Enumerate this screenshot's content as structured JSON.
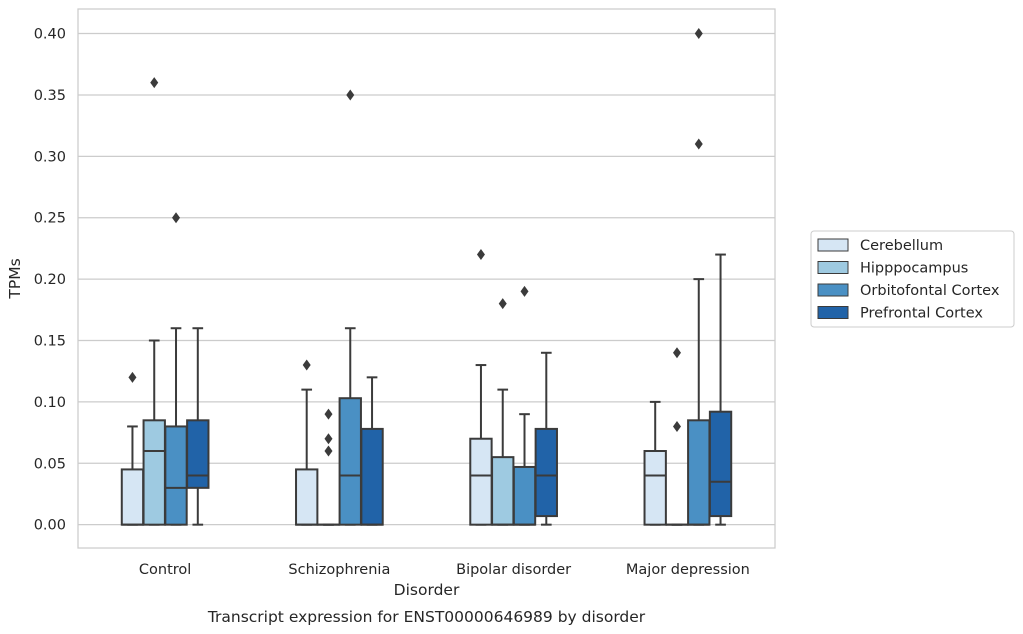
{
  "caption": "Transcript expression for ENST00000646989 by disorder",
  "chart_data": {
    "type": "boxplot",
    "xlabel": "Disorder",
    "ylabel": "TPMs",
    "ylim": [
      -0.019,
      0.42
    ],
    "yticks": [
      0.0,
      0.05,
      0.1,
      0.15,
      0.2,
      0.25,
      0.3,
      0.35,
      0.4
    ],
    "ytick_labels": [
      "0.00",
      "0.05",
      "0.10",
      "0.15",
      "0.20",
      "0.25",
      "0.30",
      "0.35",
      "0.40"
    ],
    "grid": true,
    "legend_position": "right",
    "categories": [
      "Control",
      "Schizophrenia",
      "Bipolar disorder",
      "Major depression"
    ],
    "series": [
      {
        "name": "Cerebellum",
        "color": "#d6e6f4",
        "boxes": [
          {
            "whislo": 0.0,
            "q1": 0.0,
            "med": 0.0,
            "q3": 0.045,
            "whishi": 0.08,
            "fliers": [
              0.12
            ]
          },
          {
            "whislo": 0.0,
            "q1": 0.0,
            "med": 0.0,
            "q3": 0.045,
            "whishi": 0.11,
            "fliers": [
              0.13
            ]
          },
          {
            "whislo": 0.0,
            "q1": 0.0,
            "med": 0.04,
            "q3": 0.07,
            "whishi": 0.13,
            "fliers": [
              0.22
            ]
          },
          {
            "whislo": 0.0,
            "q1": 0.0,
            "med": 0.04,
            "q3": 0.06,
            "whishi": 0.1,
            "fliers": []
          }
        ]
      },
      {
        "name": "Hipppocampus",
        "color": "#9ecae1",
        "boxes": [
          {
            "whislo": 0.0,
            "q1": 0.0,
            "med": 0.06,
            "q3": 0.085,
            "whishi": 0.15,
            "fliers": [
              0.36
            ]
          },
          {
            "whislo": 0.0,
            "q1": 0.0,
            "med": 0.0,
            "q3": 0.0,
            "whishi": 0.0,
            "fliers": [
              0.06,
              0.07,
              0.09
            ]
          },
          {
            "whislo": 0.0,
            "q1": 0.0,
            "med": 0.0,
            "q3": 0.055,
            "whishi": 0.11,
            "fliers": [
              0.18
            ]
          },
          {
            "whislo": 0.0,
            "q1": 0.0,
            "med": 0.0,
            "q3": 0.0,
            "whishi": 0.0,
            "fliers": [
              0.08,
              0.14
            ]
          }
        ]
      },
      {
        "name": "Orbitofontal Cortex",
        "color": "#4a90c4",
        "boxes": [
          {
            "whislo": 0.0,
            "q1": 0.0,
            "med": 0.03,
            "q3": 0.08,
            "whishi": 0.16,
            "fliers": [
              0.25
            ]
          },
          {
            "whislo": 0.0,
            "q1": 0.0,
            "med": 0.04,
            "q3": 0.103,
            "whishi": 0.16,
            "fliers": [
              0.35
            ]
          },
          {
            "whislo": 0.0,
            "q1": 0.0,
            "med": 0.0,
            "q3": 0.047,
            "whishi": 0.09,
            "fliers": [
              0.19
            ]
          },
          {
            "whislo": 0.0,
            "q1": 0.0,
            "med": 0.0,
            "q3": 0.085,
            "whishi": 0.2,
            "fliers": [
              0.31,
              0.4
            ]
          }
        ]
      },
      {
        "name": "Prefrontal Cortex",
        "color": "#2163a8",
        "boxes": [
          {
            "whislo": 0.0,
            "q1": 0.03,
            "med": 0.04,
            "q3": 0.085,
            "whishi": 0.16,
            "fliers": []
          },
          {
            "whislo": 0.0,
            "q1": 0.0,
            "med": 0.0,
            "q3": 0.078,
            "whishi": 0.12,
            "fliers": []
          },
          {
            "whislo": 0.0,
            "q1": 0.007,
            "med": 0.04,
            "q3": 0.078,
            "whishi": 0.14,
            "fliers": []
          },
          {
            "whislo": 0.0,
            "q1": 0.007,
            "med": 0.035,
            "q3": 0.092,
            "whishi": 0.22,
            "fliers": []
          }
        ]
      }
    ]
  }
}
